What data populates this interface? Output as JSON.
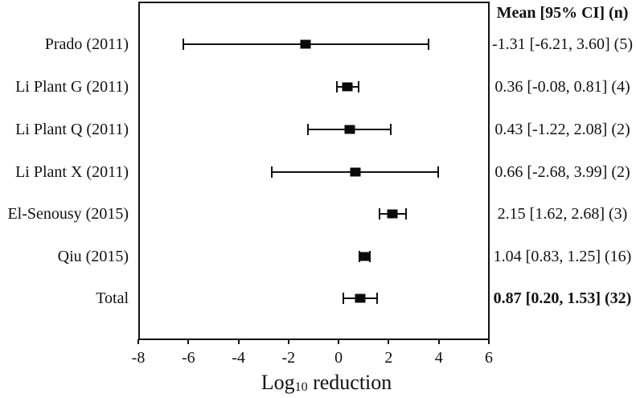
{
  "colors": {
    "foreground": "#111111",
    "background": "#ffffff"
  },
  "chart_data": {
    "type": "forest",
    "xlabel": "Log10 reduction",
    "xlabel_parts": {
      "prefix": "Log",
      "sub": "10",
      "suffix": " reduction"
    },
    "column_header": "Mean [95% CI] (n)",
    "xlim": [
      -8,
      6
    ],
    "xticks": [
      "-8",
      "-6",
      "-4",
      "-2",
      "0",
      "2",
      "4",
      "6"
    ],
    "xtick_values": [
      -8,
      -6,
      -4,
      -2,
      0,
      2,
      4,
      6
    ],
    "grid": false,
    "legend": "none",
    "rows": [
      {
        "label": "Prado (2011)",
        "mean": -1.31,
        "lo": -6.21,
        "hi": 3.6,
        "n": 5,
        "text": "-1.31 [-6.21, 3.60] (5)",
        "bold": false
      },
      {
        "label": "Li Plant G (2011)",
        "mean": 0.36,
        "lo": -0.08,
        "hi": 0.81,
        "n": 4,
        "text": "0.36 [-0.08, 0.81] (4)",
        "bold": false
      },
      {
        "label": "Li Plant Q (2011)",
        "mean": 0.43,
        "lo": -1.22,
        "hi": 2.08,
        "n": 2,
        "text": "0.43 [-1.22, 2.08] (2)",
        "bold": false
      },
      {
        "label": "Li Plant X (2011)",
        "mean": 0.66,
        "lo": -2.68,
        "hi": 3.99,
        "n": 2,
        "text": "0.66 [-2.68, 3.99] (2)",
        "bold": false
      },
      {
        "label": "El-Senousy (2015)",
        "mean": 2.15,
        "lo": 1.62,
        "hi": 2.68,
        "n": 3,
        "text": "2.15 [1.62, 2.68] (3)",
        "bold": false
      },
      {
        "label": "Qiu (2015)",
        "mean": 1.04,
        "lo": 0.83,
        "hi": 1.25,
        "n": 16,
        "text": "1.04 [0.83, 1.25] (16)",
        "bold": false
      },
      {
        "label": "Total",
        "mean": 0.87,
        "lo": 0.2,
        "hi": 1.53,
        "n": 32,
        "text": "0.87 [0.20, 1.53] (32)",
        "bold": true
      }
    ]
  }
}
